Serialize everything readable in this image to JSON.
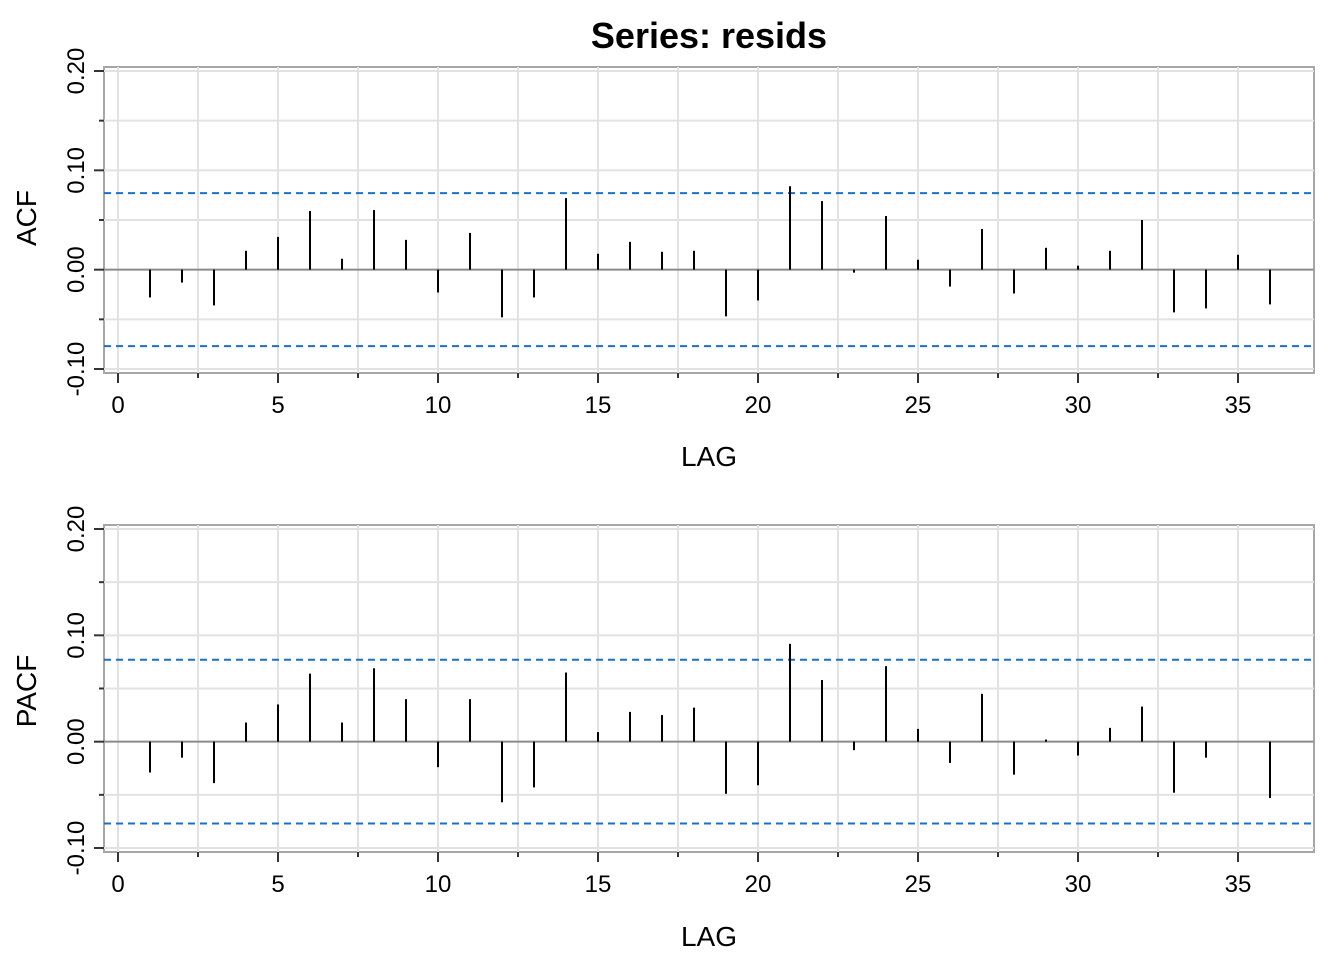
{
  "title": "Series:  resids",
  "colors": {
    "spike": "#000000",
    "confidence_band": "#1f6fc5",
    "grid": "#e2e2e2",
    "frame": "#a6a6a6"
  },
  "chart_data": [
    {
      "type": "bar",
      "ylabel": "ACF",
      "xlabel": "LAG",
      "xlim": [
        0,
        37
      ],
      "ylim": [
        -0.1,
        0.2
      ],
      "xticks": [
        0,
        5,
        10,
        15,
        20,
        25,
        30,
        35
      ],
      "yticks": [
        -0.1,
        0.0,
        0.1,
        0.2
      ],
      "ytick_labels": [
        "-0.10",
        "0.00",
        "0.10",
        "0.20"
      ],
      "grid": true,
      "confidence_bounds": [
        0.077,
        -0.077
      ],
      "lags": [
        1,
        2,
        3,
        4,
        5,
        6,
        7,
        8,
        9,
        10,
        11,
        12,
        13,
        14,
        15,
        16,
        17,
        18,
        19,
        20,
        21,
        22,
        23,
        24,
        25,
        26,
        27,
        28,
        29,
        30,
        31,
        32,
        33,
        34,
        35,
        36
      ],
      "values": [
        -0.028,
        -0.013,
        -0.036,
        0.019,
        0.033,
        0.059,
        0.011,
        0.06,
        0.03,
        -0.023,
        0.037,
        -0.048,
        -0.028,
        0.072,
        0.016,
        0.028,
        0.018,
        0.019,
        -0.047,
        -0.031,
        0.084,
        0.069,
        -0.003,
        0.054,
        0.01,
        -0.017,
        0.041,
        -0.024,
        0.022,
        0.004,
        0.019,
        0.05,
        -0.043,
        -0.039,
        0.015,
        -0.035
      ]
    },
    {
      "type": "bar",
      "ylabel": "PACF",
      "xlabel": "LAG",
      "xlim": [
        0,
        37
      ],
      "ylim": [
        -0.1,
        0.2
      ],
      "xticks": [
        0,
        5,
        10,
        15,
        20,
        25,
        30,
        35
      ],
      "yticks": [
        -0.1,
        0.0,
        0.1,
        0.2
      ],
      "ytick_labels": [
        "-0.10",
        "0.00",
        "0.10",
        "0.20"
      ],
      "grid": true,
      "confidence_bounds": [
        0.077,
        -0.077
      ],
      "lags": [
        1,
        2,
        3,
        4,
        5,
        6,
        7,
        8,
        9,
        10,
        11,
        12,
        13,
        14,
        15,
        16,
        17,
        18,
        19,
        20,
        21,
        22,
        23,
        24,
        25,
        26,
        27,
        28,
        29,
        30,
        31,
        32,
        33,
        34,
        35,
        36
      ],
      "values": [
        -0.029,
        -0.015,
        -0.039,
        0.018,
        0.035,
        0.064,
        0.018,
        0.069,
        0.04,
        -0.024,
        0.04,
        -0.057,
        -0.043,
        0.065,
        0.009,
        0.028,
        0.025,
        0.032,
        -0.049,
        -0.041,
        0.092,
        0.058,
        -0.008,
        0.071,
        0.012,
        -0.02,
        0.045,
        -0.031,
        0.002,
        -0.013,
        0.013,
        0.033,
        -0.048,
        -0.015,
        0.0,
        -0.053
      ]
    }
  ]
}
